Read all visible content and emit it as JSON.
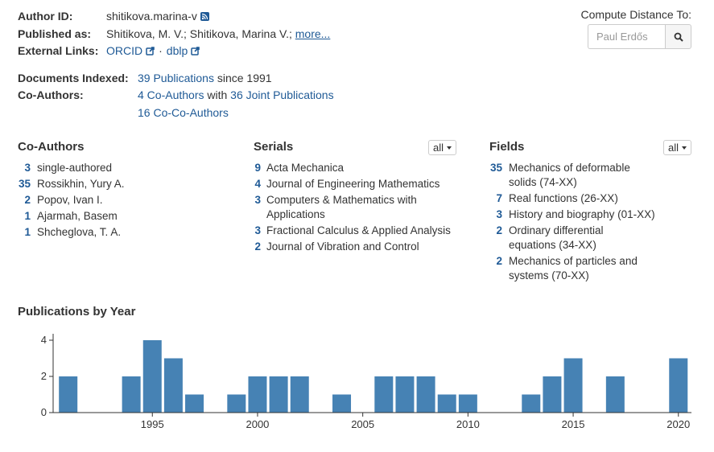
{
  "author": {
    "id_label": "Author ID:",
    "id_value": "shitikova.marina-v",
    "published_label": "Published as:",
    "published_value": "Shitikova, M. V.; Shitikova, Marina V.;",
    "more_link": "more...",
    "external_label": "External Links:",
    "orcid": "ORCID",
    "separator": "·",
    "dblp": "dblp"
  },
  "compute": {
    "label": "Compute Distance To:",
    "placeholder": "Paul Erdős",
    "button_icon": "search-icon"
  },
  "documents": {
    "indexed_label": "Documents Indexed:",
    "publications_link": "39 Publications",
    "since_text": "since 1991",
    "coauthors_label": "Co-Authors:",
    "coauthors_link": "4 Co-Authors",
    "with_text": "with",
    "joint_link": "36 Joint Publications",
    "cocoauthors_link": "16 Co-Co-Authors"
  },
  "coauthors": {
    "title": "Co-Authors",
    "items": [
      {
        "count": "3",
        "name": "single-authored"
      },
      {
        "count": "35",
        "name": "Rossikhin, Yury A."
      },
      {
        "count": "2",
        "name": "Popov, Ivan I."
      },
      {
        "count": "1",
        "name": "Ajarmah, Basem"
      },
      {
        "count": "1",
        "name": "Shcheglova, T. A."
      }
    ]
  },
  "serials": {
    "title": "Serials",
    "filter": "all",
    "items": [
      {
        "count": "9",
        "line1": "Acta Mechanica",
        "line2": ""
      },
      {
        "count": "4",
        "line1": "Journal of Engineering Mathematics",
        "line2": ""
      },
      {
        "count": "3",
        "line1": "Computers & Mathematics with",
        "line2": "Applications"
      },
      {
        "count": "3",
        "line1": "Fractional Calculus & Applied Analysis",
        "line2": ""
      },
      {
        "count": "2",
        "line1": "Journal of Vibration and Control",
        "line2": ""
      }
    ]
  },
  "fields": {
    "title": "Fields",
    "filter": "all",
    "items": [
      {
        "count": "35",
        "line1": "Mechanics of deformable",
        "line2": "solids (74-XX)"
      },
      {
        "count": "7",
        "line1": "Real functions (26-XX)",
        "line2": ""
      },
      {
        "count": "3",
        "line1": "History and biography (01-XX)",
        "line2": ""
      },
      {
        "count": "2",
        "line1": "Ordinary differential",
        "line2": "equations (34-XX)"
      },
      {
        "count": "2",
        "line1": "Mechanics of particles and",
        "line2": "systems (70-XX)"
      }
    ]
  },
  "chart_data": {
    "type": "bar",
    "title": "Publications by Year",
    "x": [
      1991,
      1994,
      1995,
      1996,
      1997,
      1999,
      2000,
      2001,
      2002,
      2004,
      2006,
      2007,
      2008,
      2009,
      2010,
      2013,
      2014,
      2015,
      2017,
      2020
    ],
    "values": [
      2,
      2,
      4,
      3,
      1,
      1,
      2,
      2,
      2,
      1,
      2,
      2,
      2,
      1,
      1,
      1,
      2,
      3,
      2,
      3
    ],
    "xticks": [
      1995,
      2000,
      2005,
      2010,
      2015,
      2020
    ],
    "yticks": [
      0,
      2,
      4
    ],
    "xlim": [
      1991,
      2020
    ],
    "ylim": [
      0,
      4
    ],
    "bar_color": "#4682b4"
  }
}
